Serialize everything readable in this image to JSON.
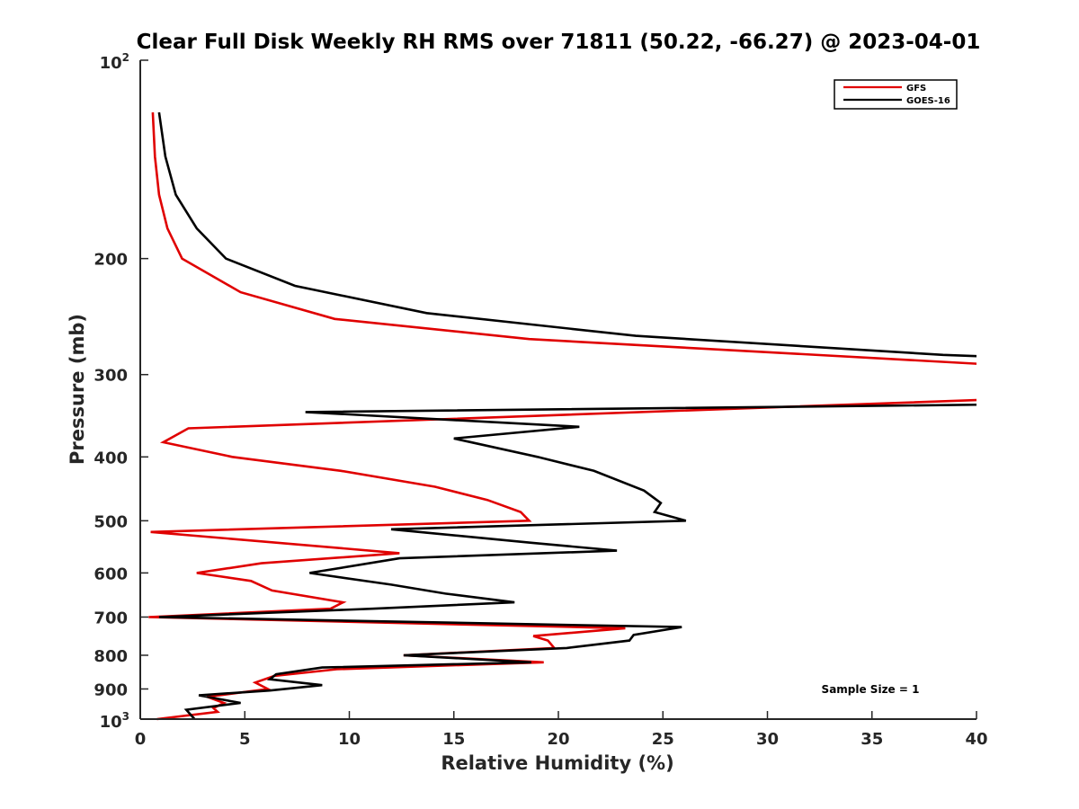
{
  "chart_data": {
    "type": "line",
    "title": "Clear Full Disk Weekly RH RMS over 71811 (50.22, -66.27) @ 2023-04-01",
    "xlabel": "Relative Humidity (%)",
    "ylabel": "Pressure (mb)",
    "xlim": [
      0,
      40
    ],
    "ylim": [
      100,
      1000
    ],
    "yscale": "log",
    "y_reversed": true,
    "grid": false,
    "legend_position": "top-right",
    "x_ticks": [
      0,
      5,
      10,
      15,
      20,
      25,
      30,
      35,
      40
    ],
    "x_tick_labels": [
      "0",
      "5",
      "10",
      "15",
      "20",
      "25",
      "30",
      "35",
      "40"
    ],
    "y_ticks": [
      200,
      300,
      400,
      500,
      600,
      700,
      800,
      900
    ],
    "y_tick_labels": [
      "200",
      "300",
      "400",
      "500",
      "600",
      "700",
      "800",
      "900"
    ],
    "y_top_label": {
      "base": "10",
      "exp": "2"
    },
    "y_bottom_label": {
      "base": "10",
      "exp": "3"
    },
    "annotation": "Sample Size = 1",
    "series": [
      {
        "name": "GFS",
        "color": "#e00000",
        "points": [
          [
            0.6,
            120
          ],
          [
            0.7,
            140
          ],
          [
            0.9,
            160
          ],
          [
            1.3,
            180
          ],
          [
            2.0,
            200
          ],
          [
            4.8,
            225
          ],
          [
            9.3,
            247
          ],
          [
            18.6,
            265
          ],
          [
            41,
            290
          ],
          [
            41,
            327
          ],
          [
            2.3,
            362
          ],
          [
            1.1,
            380
          ],
          [
            4.4,
            400
          ],
          [
            9.6,
            420
          ],
          [
            14.1,
            444
          ],
          [
            16.6,
            465
          ],
          [
            18.2,
            485
          ],
          [
            18.6,
            500
          ],
          [
            0.5,
            520
          ],
          [
            12.4,
            560
          ],
          [
            5.8,
            580
          ],
          [
            2.7,
            600
          ],
          [
            5.3,
            617
          ],
          [
            6.3,
            638
          ],
          [
            9.7,
            665
          ],
          [
            9.1,
            680
          ],
          [
            0.4,
            700
          ],
          [
            23.2,
            728
          ],
          [
            18.8,
            748
          ],
          [
            19.5,
            760
          ],
          [
            19.8,
            780
          ],
          [
            12.6,
            800
          ],
          [
            19.3,
            820
          ],
          [
            9.4,
            840
          ],
          [
            6.4,
            860
          ],
          [
            5.5,
            880
          ],
          [
            6.1,
            900
          ],
          [
            3.2,
            925
          ],
          [
            4.0,
            945
          ],
          [
            3.5,
            962
          ],
          [
            3.7,
            975
          ],
          [
            0.8,
            1000
          ]
        ]
      },
      {
        "name": "GOES-16",
        "color": "#000000",
        "points": [
          [
            0.9,
            120
          ],
          [
            1.2,
            140
          ],
          [
            1.7,
            160
          ],
          [
            2.7,
            180
          ],
          [
            4.1,
            200
          ],
          [
            7.4,
            220
          ],
          [
            13.7,
            242
          ],
          [
            23.7,
            262
          ],
          [
            38.4,
            280
          ],
          [
            41,
            282
          ],
          [
            41,
            333
          ],
          [
            7.9,
            342
          ],
          [
            21.0,
            360
          ],
          [
            15.0,
            375
          ],
          [
            19.0,
            400
          ],
          [
            21.7,
            420
          ],
          [
            24.1,
            450
          ],
          [
            24.9,
            470
          ],
          [
            24.6,
            485
          ],
          [
            26.1,
            500
          ],
          [
            12.0,
            515
          ],
          [
            18.7,
            540
          ],
          [
            22.8,
            555
          ],
          [
            12.4,
            570
          ],
          [
            8.1,
            600
          ],
          [
            12.0,
            625
          ],
          [
            14.6,
            645
          ],
          [
            17.9,
            665
          ],
          [
            11.1,
            680
          ],
          [
            0.9,
            700
          ],
          [
            25.9,
            725
          ],
          [
            23.6,
            745
          ],
          [
            23.4,
            760
          ],
          [
            20.4,
            780
          ],
          [
            12.6,
            800
          ],
          [
            18.7,
            820
          ],
          [
            8.7,
            835
          ],
          [
            6.5,
            855
          ],
          [
            6.2,
            870
          ],
          [
            8.7,
            888
          ],
          [
            6.2,
            905
          ],
          [
            2.8,
            920
          ],
          [
            4.8,
            945
          ],
          [
            2.2,
            968
          ],
          [
            2.6,
            1000
          ]
        ]
      }
    ]
  }
}
